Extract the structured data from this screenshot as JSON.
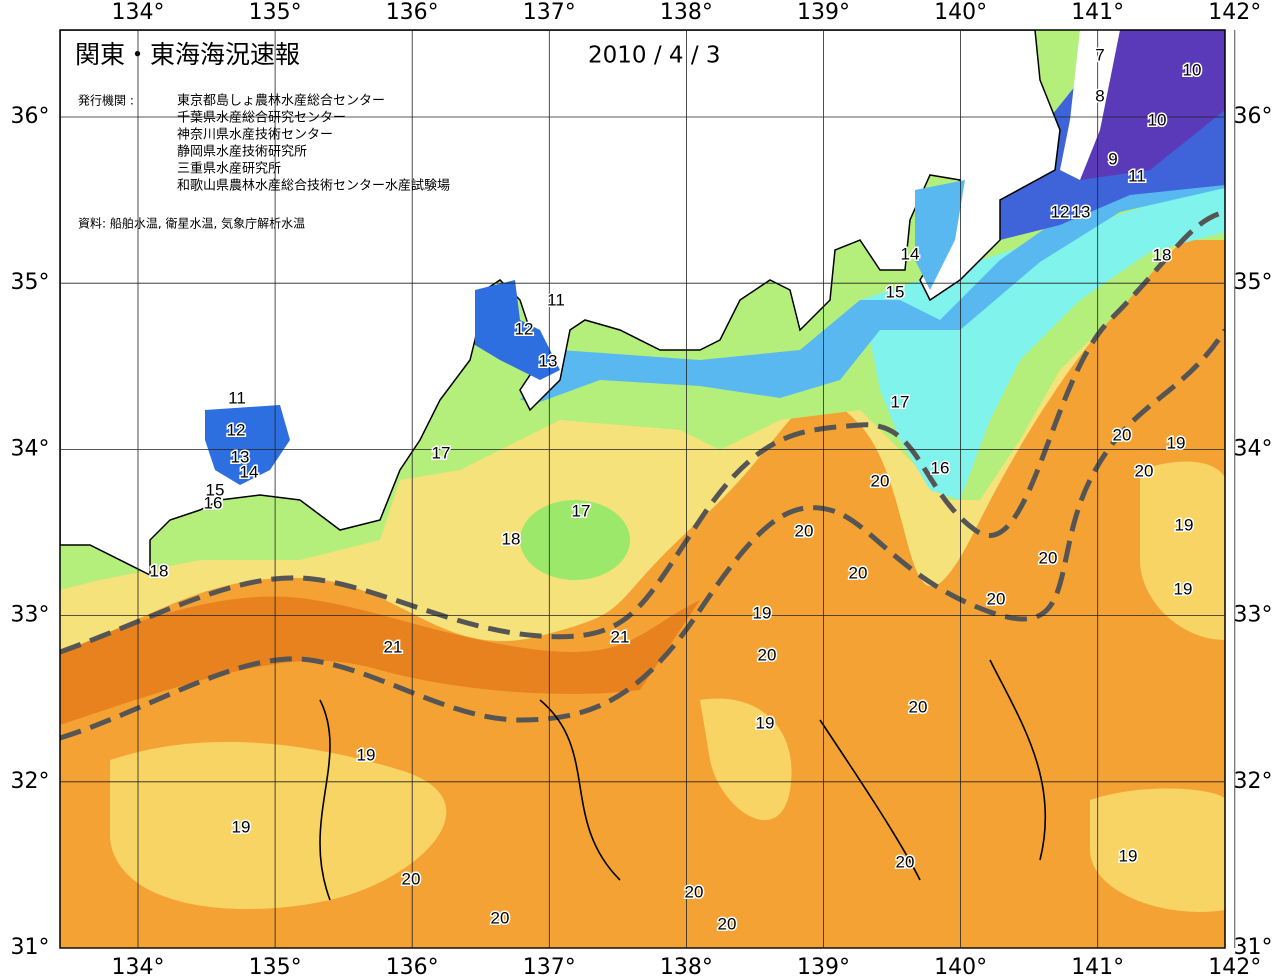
{
  "header": {
    "title": "関東・東海海況速報",
    "date": "2010 / 4 / 3"
  },
  "agencies": {
    "label": "発行機関 :",
    "items": [
      "東京都島しょ農林水産総合センター",
      "千葉県水産総合研究センター",
      "神奈川県水産技術センター",
      "静岡県水産技術研究所",
      "三重県水産研究所",
      "和歌山県農林水産総合技術センター水産試験場"
    ]
  },
  "source": "資料: 船舶水温, 衛星水温, 気象庁解析水温",
  "axes": {
    "longitude": [
      "134°",
      "135°",
      "136°",
      "137°",
      "138°",
      "139°",
      "140°",
      "141°",
      "142°"
    ],
    "latitude": [
      "36°",
      "35°",
      "34°",
      "33°",
      "32°",
      "31°"
    ]
  },
  "contour_labels": [
    7,
    8,
    10,
    10,
    9,
    11,
    12,
    13,
    14,
    15,
    18,
    11,
    12,
    13,
    11,
    12,
    13,
    14,
    15,
    16,
    17,
    17,
    16,
    20,
    20,
    19,
    20,
    17,
    18,
    19,
    20,
    20,
    20,
    18,
    19,
    20,
    19,
    21,
    21,
    20,
    20,
    19,
    19,
    19,
    19,
    20,
    20,
    20,
    20,
    20
  ]
}
